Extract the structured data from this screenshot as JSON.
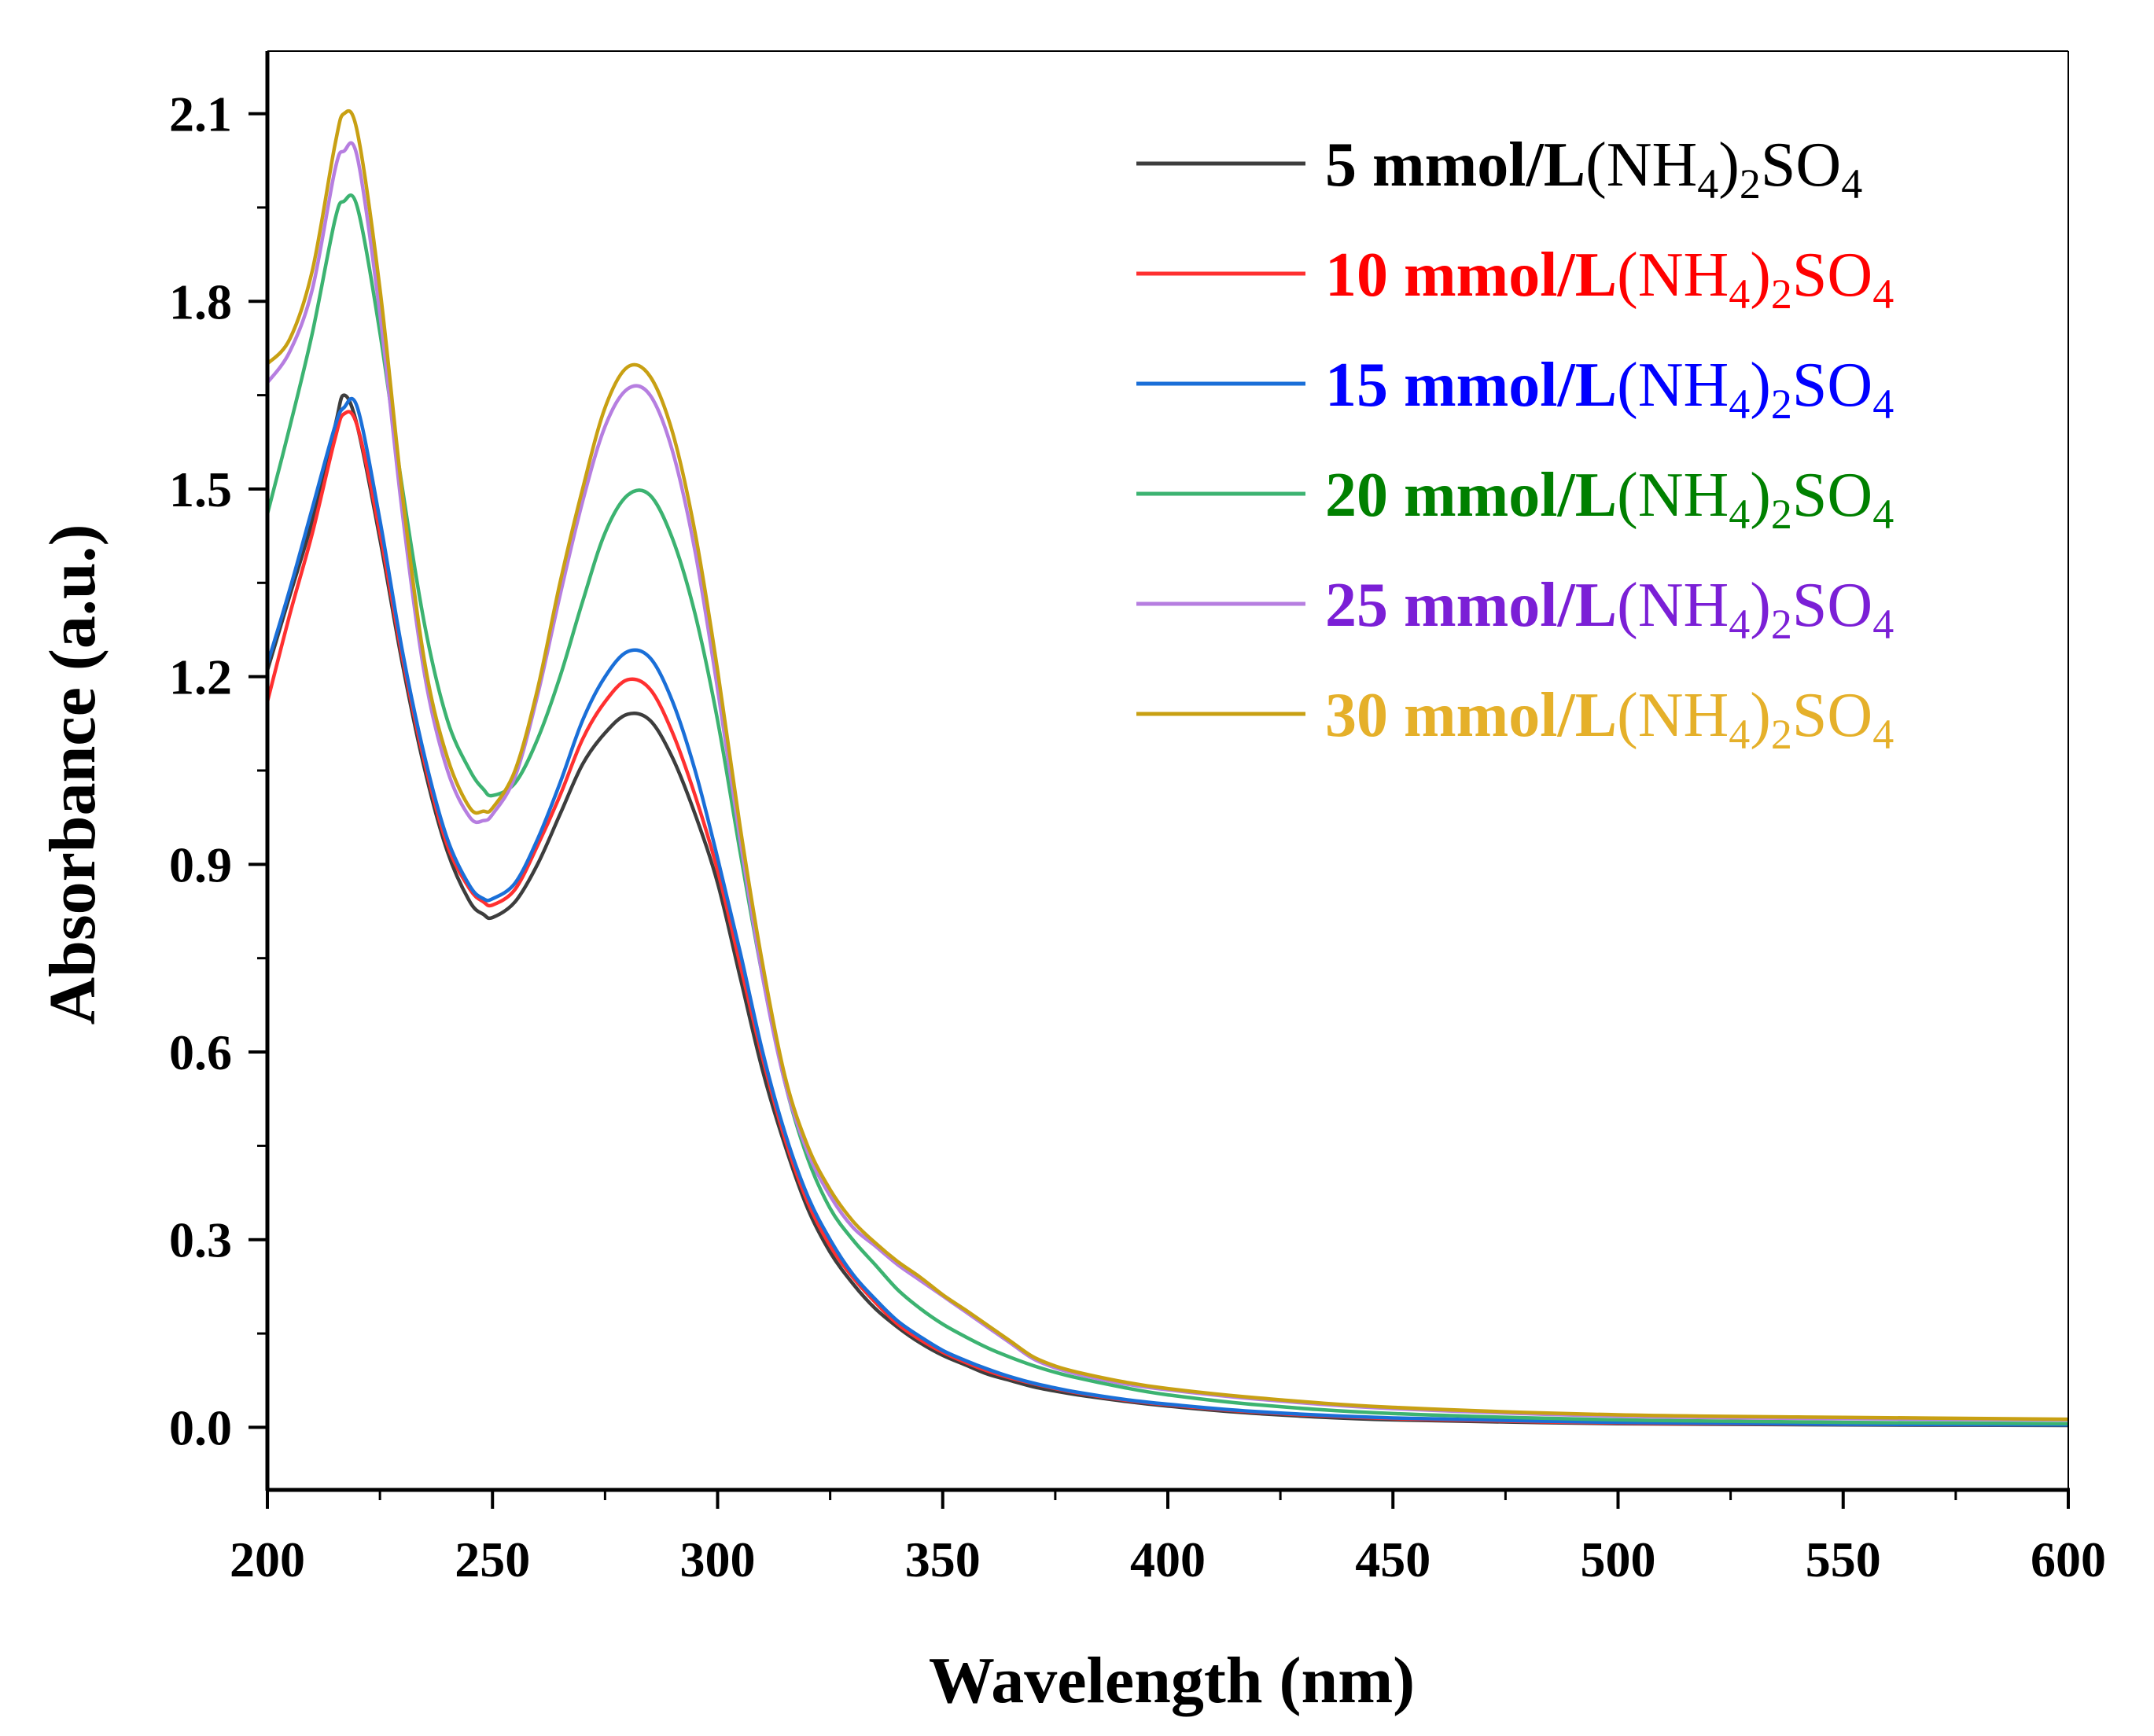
{
  "chart_data": {
    "type": "line",
    "title": "",
    "xlabel": "Wavelength (nm)",
    "ylabel": "Absorbance (a.u.)",
    "xlim": [
      200,
      600
    ],
    "ylim": [
      -0.1,
      2.2
    ],
    "xticks": [
      200,
      250,
      300,
      350,
      400,
      450,
      500,
      550,
      600
    ],
    "yticks": [
      0.0,
      0.3,
      0.6,
      0.9,
      1.2,
      1.5,
      1.8,
      2.1
    ],
    "ytick_labels": [
      "0.0",
      "0.3",
      "0.6",
      "0.9",
      "1.2",
      "1.5",
      "1.8",
      "2.1"
    ],
    "grid": false,
    "legend_position": "top-right",
    "x": [
      200,
      205,
      210,
      215,
      217,
      220,
      225,
      230,
      235,
      240,
      245,
      248,
      250,
      255,
      260,
      265,
      270,
      275,
      280,
      285,
      290,
      295,
      300,
      305,
      310,
      315,
      320,
      325,
      330,
      335,
      340,
      345,
      350,
      355,
      360,
      365,
      370,
      375,
      380,
      390,
      400,
      420,
      450,
      500,
      550,
      600
    ],
    "series": [
      {
        "name": "5 mmol/L(NH4)2SO4",
        "concentration": "5 mmol/L",
        "compound": "(NH4)2SO4",
        "color": "#3d3d3d",
        "legend_color": "#000000",
        "values": [
          1.21,
          1.33,
          1.45,
          1.6,
          1.65,
          1.6,
          1.42,
          1.22,
          1.05,
          0.92,
          0.84,
          0.82,
          0.815,
          0.84,
          0.9,
          0.98,
          1.06,
          1.11,
          1.14,
          1.13,
          1.07,
          0.98,
          0.87,
          0.72,
          0.57,
          0.45,
          0.35,
          0.28,
          0.23,
          0.19,
          0.16,
          0.135,
          0.115,
          0.1,
          0.085,
          0.075,
          0.065,
          0.058,
          0.052,
          0.042,
          0.034,
          0.022,
          0.012,
          0.006,
          0.004,
          0.003
        ]
      },
      {
        "name": "10 mmol/L(NH4)2SO4",
        "concentration": "10 mmol/L",
        "compound": "(NH4)2SO4",
        "color": "#ff3030",
        "legend_color": "#ff0000",
        "values": [
          1.16,
          1.3,
          1.43,
          1.58,
          1.62,
          1.6,
          1.43,
          1.23,
          1.06,
          0.93,
          0.86,
          0.84,
          0.835,
          0.86,
          0.93,
          1.01,
          1.1,
          1.16,
          1.195,
          1.18,
          1.11,
          1.01,
          0.89,
          0.74,
          0.59,
          0.46,
          0.36,
          0.29,
          0.24,
          0.2,
          0.165,
          0.14,
          0.12,
          0.104,
          0.09,
          0.079,
          0.07,
          0.062,
          0.055,
          0.044,
          0.036,
          0.024,
          0.014,
          0.007,
          0.005,
          0.004
        ]
      },
      {
        "name": "15 mmol/L(NH4)2SO4",
        "concentration": "15 mmol/L",
        "compound": "(NH4)2SO4",
        "color": "#1a6fd8",
        "legend_color": "#0000ff",
        "values": [
          1.22,
          1.34,
          1.47,
          1.6,
          1.63,
          1.63,
          1.45,
          1.24,
          1.07,
          0.94,
          0.865,
          0.845,
          0.845,
          0.87,
          0.94,
          1.03,
          1.13,
          1.2,
          1.24,
          1.23,
          1.16,
          1.05,
          0.91,
          0.76,
          0.6,
          0.47,
          0.37,
          0.3,
          0.245,
          0.205,
          0.17,
          0.145,
          0.123,
          0.107,
          0.093,
          0.081,
          0.071,
          0.063,
          0.056,
          0.045,
          0.037,
          0.025,
          0.015,
          0.008,
          0.005,
          0.004
        ]
      },
      {
        "name": "20 mmol/L(NH4)2SO4",
        "concentration": "20 mmol/L",
        "compound": "(NH4)2SO4",
        "color": "#3cb371",
        "legend_color": "#008000",
        "values": [
          1.46,
          1.6,
          1.75,
          1.93,
          1.96,
          1.95,
          1.75,
          1.5,
          1.28,
          1.13,
          1.05,
          1.02,
          1.01,
          1.03,
          1.1,
          1.2,
          1.32,
          1.43,
          1.49,
          1.49,
          1.42,
          1.3,
          1.13,
          0.92,
          0.72,
          0.55,
          0.43,
          0.35,
          0.3,
          0.26,
          0.22,
          0.19,
          0.165,
          0.145,
          0.127,
          0.112,
          0.099,
          0.088,
          0.079,
          0.064,
          0.052,
          0.036,
          0.022,
          0.012,
          0.008,
          0.006
        ]
      },
      {
        "name": "25 mmol/L(NH4)2SO4",
        "concentration": "25 mmol/L",
        "compound": "(NH4)2SO4",
        "color": "#b67ee0",
        "legend_color": "#7b1fd6",
        "values": [
          1.67,
          1.72,
          1.82,
          2.01,
          2.04,
          2.03,
          1.78,
          1.46,
          1.2,
          1.05,
          0.975,
          0.97,
          0.98,
          1.04,
          1.17,
          1.33,
          1.48,
          1.6,
          1.66,
          1.65,
          1.56,
          1.4,
          1.18,
          0.94,
          0.72,
          0.55,
          0.44,
          0.37,
          0.32,
          0.29,
          0.26,
          0.235,
          0.21,
          0.185,
          0.16,
          0.135,
          0.11,
          0.095,
          0.085,
          0.07,
          0.06,
          0.045,
          0.03,
          0.018,
          0.014,
          0.012
        ]
      },
      {
        "name": "30 mmol/L(NH4)2SO4",
        "concentration": "30 mmol/L",
        "compound": "(NH4)2SO4",
        "color": "#c8a013",
        "legend_color": "#e5b02a",
        "values": [
          1.7,
          1.74,
          1.85,
          2.05,
          2.1,
          2.07,
          1.82,
          1.49,
          1.22,
          1.07,
          0.99,
          0.985,
          0.99,
          1.05,
          1.18,
          1.35,
          1.5,
          1.63,
          1.695,
          1.68,
          1.59,
          1.43,
          1.21,
          0.96,
          0.74,
          0.56,
          0.45,
          0.38,
          0.33,
          0.295,
          0.265,
          0.24,
          0.212,
          0.188,
          0.163,
          0.138,
          0.113,
          0.098,
          0.088,
          0.073,
          0.062,
          0.047,
          0.032,
          0.02,
          0.016,
          0.013
        ]
      }
    ]
  }
}
